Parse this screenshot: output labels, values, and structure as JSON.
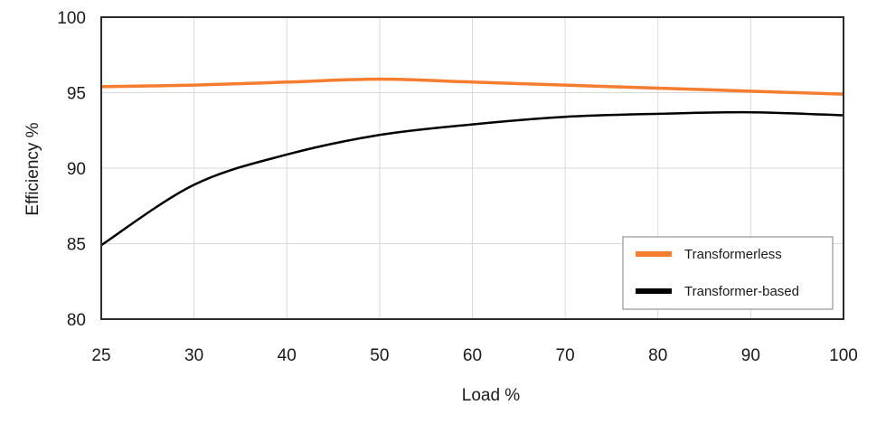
{
  "chart_data": {
    "type": "line",
    "title": "",
    "xlabel": "Load %",
    "ylabel": "Efficiency %",
    "categories": [
      "25",
      "30",
      "40",
      "50",
      "60",
      "70",
      "80",
      "90",
      "100"
    ],
    "x": [
      25,
      30,
      40,
      50,
      60,
      70,
      80,
      90,
      100
    ],
    "x_axis_spacing": "categorical-even",
    "ylim": [
      80,
      100
    ],
    "yticks": [
      80,
      85,
      90,
      95,
      100
    ],
    "grid": true,
    "legend_position": "lower-right inside",
    "series": [
      {
        "name": "Transformerless",
        "color": "#f47d30",
        "values": [
          95.4,
          95.5,
          95.7,
          95.9,
          95.7,
          95.5,
          95.3,
          95.1,
          94.9
        ]
      },
      {
        "name": "Transformer-based",
        "color": "#000000",
        "values": [
          84.9,
          88.9,
          90.9,
          92.2,
          92.9,
          93.4,
          93.6,
          93.7,
          93.5
        ]
      }
    ]
  }
}
